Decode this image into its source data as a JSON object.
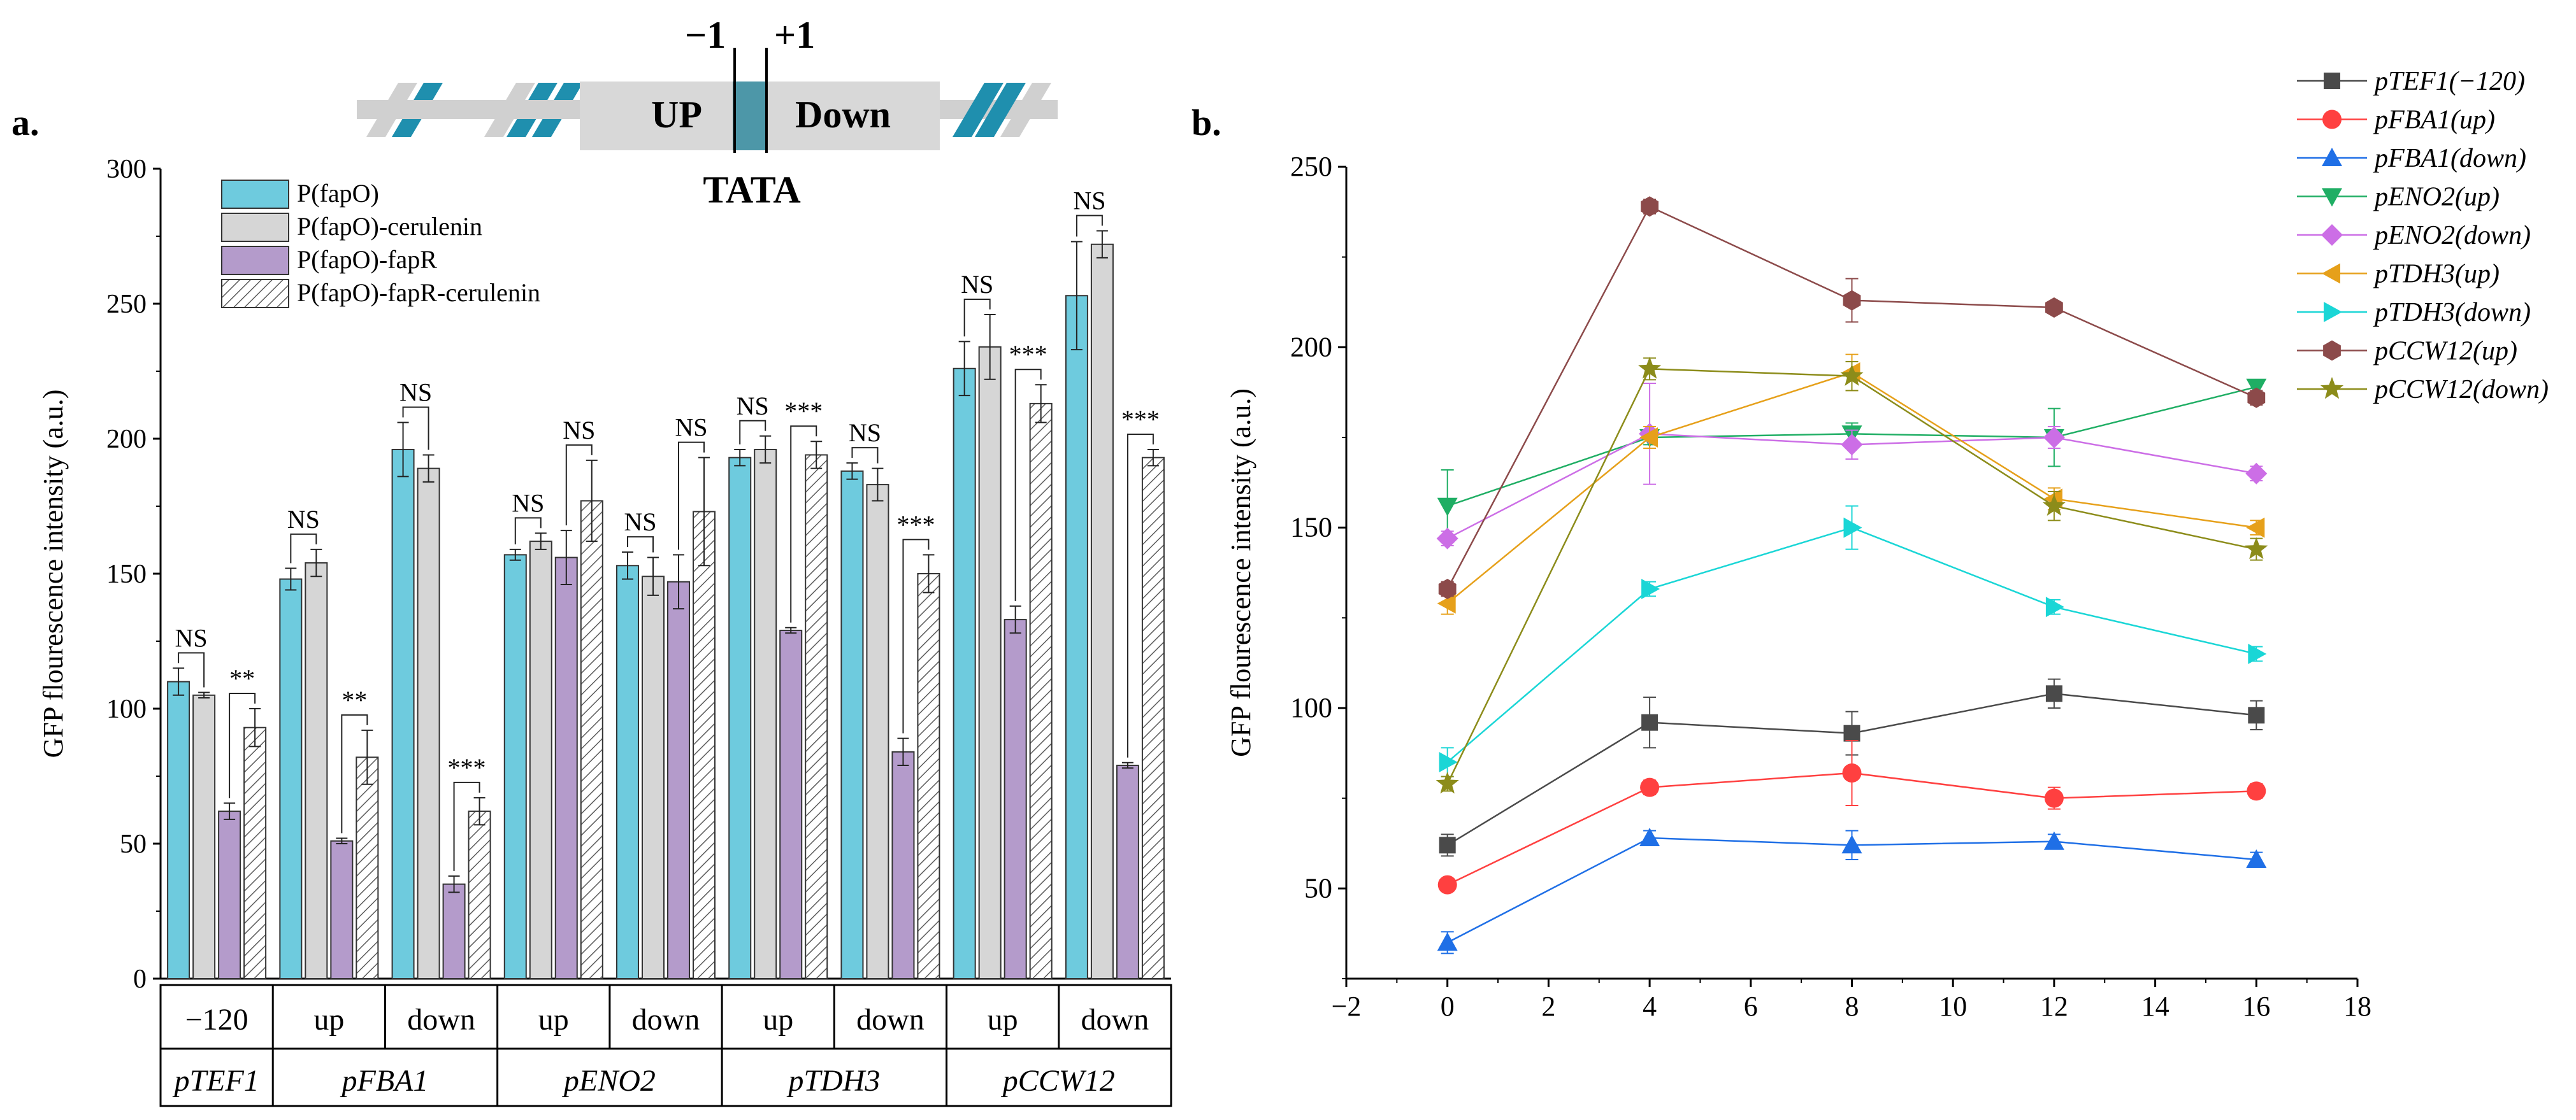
{
  "panel_a": {
    "label": "a.",
    "diagram": {
      "pos_minus": "−1",
      "pos_plus": "+1",
      "up_label": "UP",
      "down_label": "Down",
      "tata_label": "TATA"
    }
  },
  "panel_b": {
    "label": "b."
  },
  "colors": {
    "cyan": "#6ecbde",
    "gray": "#d6d6d6",
    "purple": "#b49bcb",
    "hatch": "#5a5a5a",
    "dna": "#1f8fae"
  },
  "chart_data": [
    {
      "type": "bar",
      "ylabel": "GFP flourescence intensity (a.u.)",
      "ylim": [
        0,
        300
      ],
      "yticks": [
        0,
        50,
        100,
        150,
        200,
        250,
        300
      ],
      "legend": [
        "P(fapO)",
        "P(fapO)-cerulenin",
        "P(fapO)-fapR",
        "P(fapO)-fapR-cerulenin"
      ],
      "legend_position": "top-left",
      "categories": [
        "−120",
        "up",
        "down",
        "up",
        "down",
        "up",
        "down",
        "up",
        "down"
      ],
      "groups": [
        {
          "name": "pTEF1",
          "span": 1
        },
        {
          "name": "pFBA1",
          "span": 2
        },
        {
          "name": "pENO2",
          "span": 2
        },
        {
          "name": "pTDH3",
          "span": 2
        },
        {
          "name": "pCCW12",
          "span": 2
        }
      ],
      "series": [
        {
          "name": "P(fapO)",
          "values": [
            110,
            148,
            196,
            157,
            153,
            193,
            188,
            226,
            253
          ],
          "errors": [
            5,
            4,
            10,
            2,
            5,
            3,
            3,
            10,
            20
          ]
        },
        {
          "name": "P(fapO)-cerulenin",
          "values": [
            105,
            154,
            189,
            162,
            149,
            196,
            183,
            234,
            272
          ],
          "errors": [
            1,
            5,
            5,
            3,
            7,
            5,
            6,
            12,
            5
          ]
        },
        {
          "name": "P(fapO)-fapR",
          "values": [
            62,
            51,
            35,
            156,
            147,
            129,
            84,
            133,
            79
          ],
          "errors": [
            3,
            1,
            3,
            10,
            10,
            1,
            5,
            5,
            1
          ]
        },
        {
          "name": "P(fapO)-fapR-cerulenin",
          "values": [
            93,
            82,
            62,
            177,
            173,
            194,
            150,
            213,
            193
          ],
          "errors": [
            7,
            10,
            5,
            15,
            20,
            5,
            7,
            7,
            3
          ]
        }
      ],
      "annotations": [
        {
          "cat": 0,
          "pair": "12",
          "text": "NS"
        },
        {
          "cat": 0,
          "pair": "34",
          "text": "**"
        },
        {
          "cat": 1,
          "pair": "12",
          "text": "NS"
        },
        {
          "cat": 1,
          "pair": "34",
          "text": "**"
        },
        {
          "cat": 2,
          "pair": "12",
          "text": "NS"
        },
        {
          "cat": 2,
          "pair": "34",
          "text": "***"
        },
        {
          "cat": 3,
          "pair": "12",
          "text": "NS"
        },
        {
          "cat": 3,
          "pair": "34",
          "text": "NS"
        },
        {
          "cat": 4,
          "pair": "12",
          "text": "NS"
        },
        {
          "cat": 4,
          "pair": "34",
          "text": "NS"
        },
        {
          "cat": 5,
          "pair": "12",
          "text": "NS"
        },
        {
          "cat": 5,
          "pair": "34",
          "text": "***"
        },
        {
          "cat": 6,
          "pair": "12",
          "text": "NS"
        },
        {
          "cat": 6,
          "pair": "34",
          "text": "***"
        },
        {
          "cat": 7,
          "pair": "12",
          "text": "NS"
        },
        {
          "cat": 7,
          "pair": "34",
          "text": "***"
        },
        {
          "cat": 8,
          "pair": "12",
          "text": "NS"
        },
        {
          "cat": 8,
          "pair": "34",
          "text": "***"
        }
      ]
    },
    {
      "type": "line",
      "ylabel": "GFP flourescence intensity (a.u.)",
      "xlim": [
        -2,
        18
      ],
      "ylim": [
        25,
        250
      ],
      "xticks": [
        -2,
        0,
        2,
        4,
        6,
        8,
        10,
        12,
        14,
        16,
        18
      ],
      "yticks": [
        50,
        100,
        150,
        200,
        250
      ],
      "legend_position": "top-right",
      "x": [
        0,
        4,
        8,
        12,
        16
      ],
      "series": [
        {
          "name": "pTEF1(−120)",
          "color": "#4a4a4a",
          "marker": "square",
          "values": [
            62,
            96,
            93,
            104,
            98
          ],
          "errors": [
            3,
            7,
            6,
            4,
            4
          ]
        },
        {
          "name": "pFBA1(up)",
          "color": "#ff4040",
          "marker": "circle",
          "values": [
            51,
            78,
            82,
            75,
            77
          ],
          "errors": [
            1,
            2,
            9,
            3,
            2
          ]
        },
        {
          "name": "pFBA1(down)",
          "color": "#1f6fe6",
          "marker": "triangle-up",
          "values": [
            35,
            64,
            62,
            63,
            58
          ],
          "errors": [
            3,
            2,
            4,
            2,
            2
          ]
        },
        {
          "name": "pENO2(up)",
          "color": "#1fae64",
          "marker": "triangle-down",
          "values": [
            156,
            175,
            176,
            175,
            189
          ],
          "errors": [
            10,
            2,
            3,
            8,
            2
          ]
        },
        {
          "name": "pENO2(down)",
          "color": "#cc6ee6",
          "marker": "diamond",
          "values": [
            147,
            176,
            173,
            175,
            165
          ],
          "errors": [
            2,
            14,
            4,
            3,
            2
          ]
        },
        {
          "name": "pTDH3(up)",
          "color": "#e6a01a",
          "marker": "triangle-left",
          "values": [
            129,
            175,
            193,
            158,
            150
          ],
          "errors": [
            3,
            3,
            5,
            3,
            2
          ]
        },
        {
          "name": "pTDH3(down)",
          "color": "#1ad6d6",
          "marker": "triangle-right",
          "values": [
            85,
            133,
            150,
            128,
            115
          ],
          "errors": [
            4,
            2,
            6,
            2,
            2
          ]
        },
        {
          "name": "pCCW12(up)",
          "color": "#8c4a4a",
          "marker": "hexagon",
          "values": [
            133,
            239,
            213,
            211,
            186
          ],
          "errors": [
            2,
            2,
            6,
            1,
            2
          ]
        },
        {
          "name": "pCCW12(down)",
          "color": "#8c8c1a",
          "marker": "star",
          "values": [
            79,
            194,
            192,
            156,
            144
          ],
          "errors": [
            2,
            3,
            4,
            4,
            3
          ]
        }
      ]
    }
  ]
}
